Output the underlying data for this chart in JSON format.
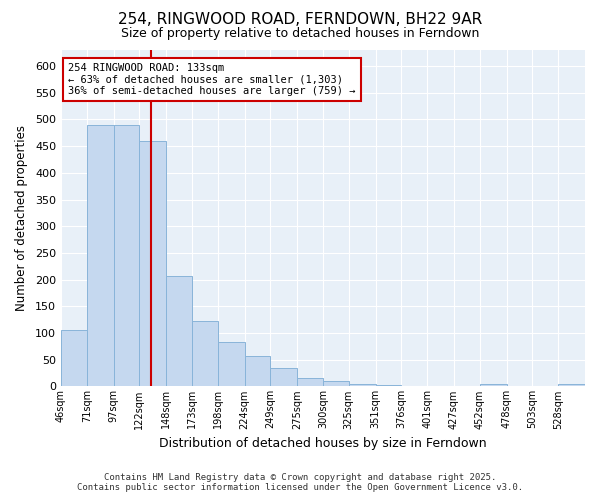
{
  "title": "254, RINGWOOD ROAD, FERNDOWN, BH22 9AR",
  "subtitle": "Size of property relative to detached houses in Ferndown",
  "xlabel": "Distribution of detached houses by size in Ferndown",
  "ylabel": "Number of detached properties",
  "bar_color": "#c5d8ef",
  "bar_edge_color": "#89b4d9",
  "background_color": "#e8f0f8",
  "grid_color": "#ffffff",
  "bins": [
    46,
    71,
    97,
    122,
    148,
    173,
    198,
    224,
    249,
    275,
    300,
    325,
    351,
    376,
    401,
    427,
    452,
    478,
    503,
    528,
    554
  ],
  "values": [
    105,
    490,
    490,
    460,
    207,
    122,
    83,
    57,
    35,
    15,
    10,
    5,
    2,
    0,
    0,
    0,
    4,
    0,
    0,
    5
  ],
  "property_size": 133,
  "annotation_text": "254 RINGWOOD ROAD: 133sqm\n← 63% of detached houses are smaller (1,303)\n36% of semi-detached houses are larger (759) →",
  "annotation_box_color": "#ffffff",
  "annotation_box_edge_color": "#cc0000",
  "red_line_color": "#cc0000",
  "ylim": [
    0,
    630
  ],
  "yticks": [
    0,
    50,
    100,
    150,
    200,
    250,
    300,
    350,
    400,
    450,
    500,
    550,
    600
  ],
  "footer_line1": "Contains HM Land Registry data © Crown copyright and database right 2025.",
  "footer_line2": "Contains public sector information licensed under the Open Government Licence v3.0."
}
